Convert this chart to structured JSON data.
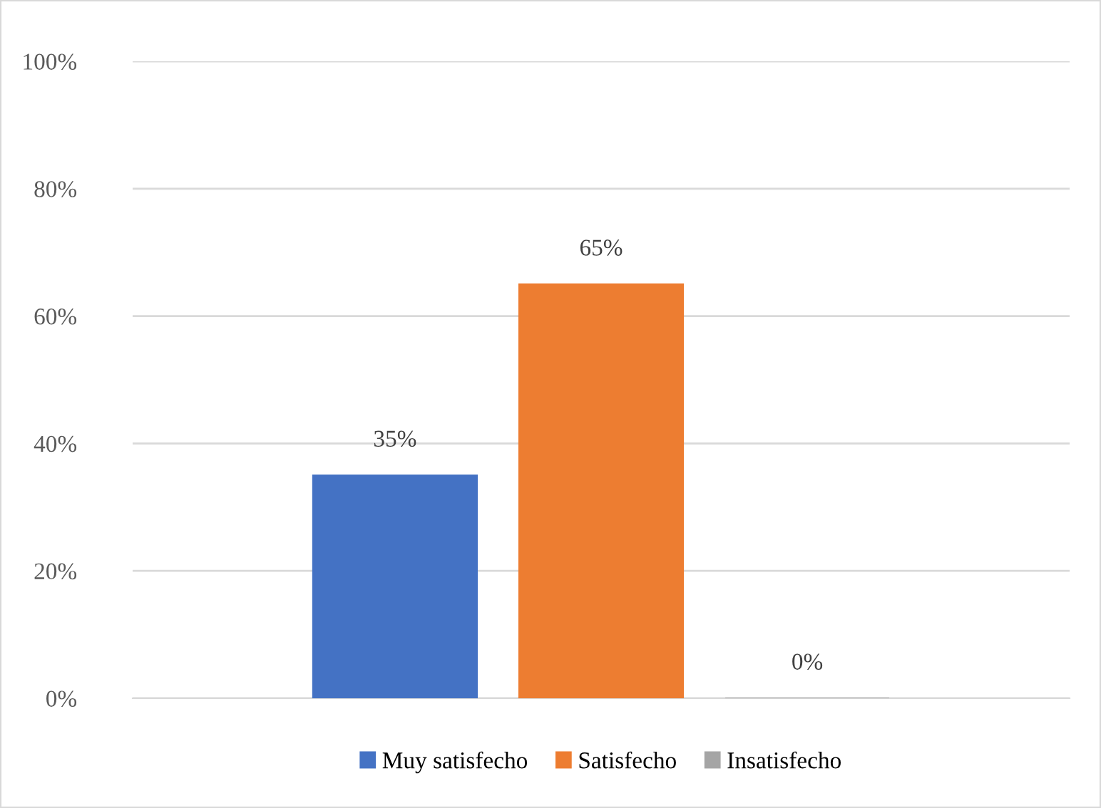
{
  "chart_data": {
    "type": "bar",
    "categories": [
      null
    ],
    "series": [
      {
        "name": "Muy satisfecho",
        "color": "#4472c4",
        "values": [
          35
        ],
        "value_labels": [
          "35%"
        ]
      },
      {
        "name": "Satisfecho",
        "color": "#ed7d31",
        "values": [
          65
        ],
        "value_labels": [
          "65%"
        ]
      },
      {
        "name": "Insatisfecho",
        "color": "#a5a5a5",
        "values": [
          0
        ],
        "value_labels": [
          "0%"
        ]
      }
    ],
    "ylim": [
      0,
      100
    ],
    "yticks": [
      {
        "value": 0,
        "label": "0%"
      },
      {
        "value": 20,
        "label": "20%"
      },
      {
        "value": 40,
        "label": "40%"
      },
      {
        "value": 60,
        "label": "60%"
      },
      {
        "value": 80,
        "label": "80%"
      },
      {
        "value": 100,
        "label": "100%"
      }
    ],
    "grid": "y",
    "legend": "bottom"
  }
}
